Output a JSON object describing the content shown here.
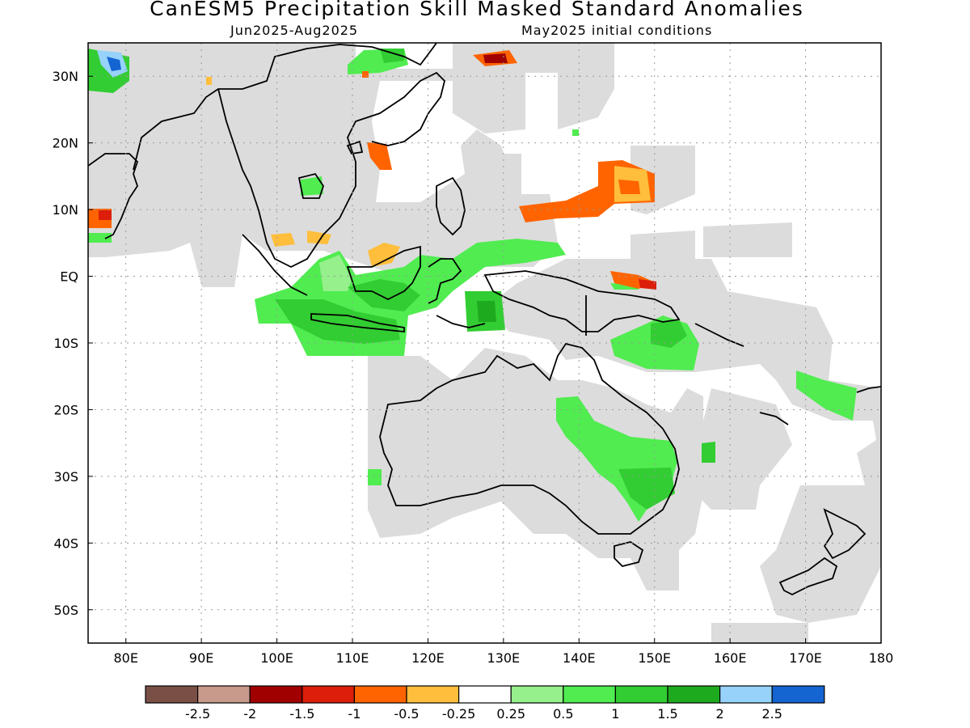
{
  "header": {
    "title": "CanESM5 Precipitation Skill Masked Standard Anomalies",
    "period": "Jun2025-Aug2025",
    "init": "May2025 initial conditions"
  },
  "map": {
    "lon_range": [
      75,
      180
    ],
    "lat_range": [
      -55,
      35
    ],
    "lat_ticks": [
      {
        "lat": 30,
        "label": "30N"
      },
      {
        "lat": 20,
        "label": "20N"
      },
      {
        "lat": 10,
        "label": "10N"
      },
      {
        "lat": 0,
        "label": "EQ"
      },
      {
        "lat": -10,
        "label": "10S"
      },
      {
        "lat": -20,
        "label": "20S"
      },
      {
        "lat": -30,
        "label": "30S"
      },
      {
        "lat": -40,
        "label": "40S"
      },
      {
        "lat": -50,
        "label": "50S"
      }
    ],
    "lon_ticks": [
      {
        "lon": 80,
        "label": "80E"
      },
      {
        "lon": 90,
        "label": "90E"
      },
      {
        "lon": 100,
        "label": "100E"
      },
      {
        "lon": 110,
        "label": "110E"
      },
      {
        "lon": 120,
        "label": "120E"
      },
      {
        "lon": 130,
        "label": "130E"
      },
      {
        "lon": 140,
        "label": "140E"
      },
      {
        "lon": 150,
        "label": "150E"
      },
      {
        "lon": 160,
        "label": "160E"
      },
      {
        "lon": 170,
        "label": "170E"
      },
      {
        "lon": 180,
        "label": "180"
      }
    ],
    "grid": true,
    "mask_color": "#dcdcdc"
  },
  "colorbar": {
    "colors": [
      "#7a5046",
      "#c89a8c",
      "#a00000",
      "#dc1e0a",
      "#ff6400",
      "#ffbe3c",
      "#ffffff",
      "#96f08c",
      "#50ec50",
      "#32cd32",
      "#1eaa1e",
      "#96d2fa",
      "#1464d2"
    ],
    "labels": [
      "-2.5",
      "-2",
      "-1.5",
      "-1",
      "-0.5",
      "-0.25",
      "0.25",
      "0.5",
      "1",
      "1.5",
      "2",
      "2.5"
    ]
  }
}
